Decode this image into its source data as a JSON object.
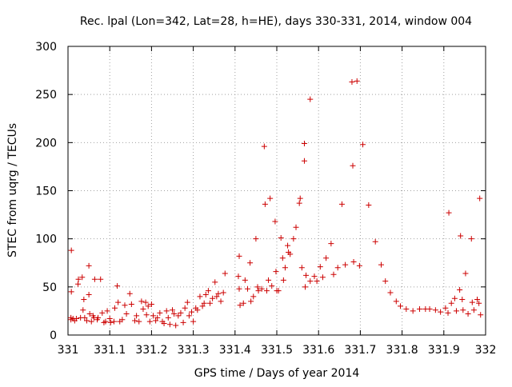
{
  "chart_data": {
    "type": "scatter",
    "title": "Rec. lpal (Lon=342, Lat=28, h=HE), days 330-331, 2014, window 004",
    "xlabel": "GPS time / Days of year 2014",
    "ylabel": "STEC from uqrg / TECUs",
    "xlim": [
      331,
      332
    ],
    "ylim": [
      0,
      300
    ],
    "xticks": [
      "331",
      "331.1",
      "331.2",
      "331.3",
      "331.4",
      "331.5",
      "331.6",
      "331.7",
      "331.8",
      "331.9",
      "332"
    ],
    "yticks": [
      "0",
      "50",
      "100",
      "150",
      "200",
      "250",
      "300"
    ],
    "grid": true,
    "legend": "none",
    "marker": "+",
    "color": "#cc0000",
    "series": [
      {
        "points": [
          [
            331.008,
            88
          ],
          [
            331.008,
            45
          ],
          [
            331.007,
            18
          ],
          [
            331.007,
            16
          ],
          [
            331.012,
            17
          ],
          [
            331.016,
            15
          ],
          [
            331.02,
            17
          ],
          [
            331.025,
            58
          ],
          [
            331.024,
            53
          ],
          [
            331.03,
            18
          ],
          [
            331.034,
            60
          ],
          [
            331.036,
            26
          ],
          [
            331.038,
            37
          ],
          [
            331.04,
            18
          ],
          [
            331.045,
            15
          ],
          [
            331.05,
            72
          ],
          [
            331.05,
            42
          ],
          [
            331.052,
            22
          ],
          [
            331.056,
            14
          ],
          [
            331.06,
            20
          ],
          [
            331.062,
            18
          ],
          [
            331.064,
            58
          ],
          [
            331.07,
            16
          ],
          [
            331.072,
            18
          ],
          [
            331.078,
            58
          ],
          [
            331.082,
            23
          ],
          [
            331.086,
            13
          ],
          [
            331.09,
            14
          ],
          [
            331.094,
            25
          ],
          [
            331.1,
            17
          ],
          [
            331.102,
            13
          ],
          [
            331.11,
            14
          ],
          [
            331.112,
            28
          ],
          [
            331.118,
            51
          ],
          [
            331.12,
            34
          ],
          [
            331.124,
            14
          ],
          [
            331.13,
            16
          ],
          [
            331.136,
            31
          ],
          [
            331.14,
            22
          ],
          [
            331.148,
            43
          ],
          [
            331.152,
            32
          ],
          [
            331.16,
            15
          ],
          [
            331.164,
            20
          ],
          [
            331.17,
            14
          ],
          [
            331.176,
            35
          ],
          [
            331.18,
            27
          ],
          [
            331.186,
            34
          ],
          [
            331.188,
            21
          ],
          [
            331.192,
            30
          ],
          [
            331.196,
            14
          ],
          [
            331.2,
            32
          ],
          [
            331.204,
            20
          ],
          [
            331.21,
            15
          ],
          [
            331.214,
            18
          ],
          [
            331.22,
            23
          ],
          [
            331.226,
            14
          ],
          [
            331.23,
            12
          ],
          [
            331.236,
            25
          ],
          [
            331.24,
            18
          ],
          [
            331.244,
            11
          ],
          [
            331.25,
            26
          ],
          [
            331.254,
            22
          ],
          [
            331.258,
            10
          ],
          [
            331.264,
            20
          ],
          [
            331.27,
            23
          ],
          [
            331.276,
            13
          ],
          [
            331.28,
            28
          ],
          [
            331.286,
            34
          ],
          [
            331.29,
            20
          ],
          [
            331.296,
            24
          ],
          [
            331.3,
            14
          ],
          [
            331.306,
            28
          ],
          [
            331.31,
            26
          ],
          [
            331.316,
            40
          ],
          [
            331.322,
            30
          ],
          [
            331.326,
            33
          ],
          [
            331.33,
            42
          ],
          [
            331.336,
            46
          ],
          [
            331.34,
            33
          ],
          [
            331.346,
            38
          ],
          [
            331.352,
            55
          ],
          [
            331.356,
            40
          ],
          [
            331.36,
            43
          ],
          [
            331.366,
            35
          ],
          [
            331.372,
            44
          ],
          [
            331.376,
            64
          ],
          [
            331.41,
            82
          ],
          [
            331.408,
            61
          ],
          [
            331.41,
            48
          ],
          [
            331.412,
            31
          ],
          [
            331.42,
            33
          ],
          [
            331.424,
            57
          ],
          [
            331.43,
            48
          ],
          [
            331.436,
            75
          ],
          [
            331.438,
            35
          ],
          [
            331.444,
            40
          ],
          [
            331.45,
            100
          ],
          [
            331.454,
            50
          ],
          [
            331.456,
            46
          ],
          [
            331.464,
            48
          ],
          [
            331.47,
            196
          ],
          [
            331.472,
            136
          ],
          [
            331.476,
            46
          ],
          [
            331.48,
            57
          ],
          [
            331.484,
            142
          ],
          [
            331.488,
            51
          ],
          [
            331.496,
            118
          ],
          [
            331.498,
            66
          ],
          [
            331.5,
            46
          ],
          [
            331.504,
            46
          ],
          [
            331.51,
            101
          ],
          [
            331.514,
            80
          ],
          [
            331.516,
            57
          ],
          [
            331.52,
            70
          ],
          [
            331.526,
            93
          ],
          [
            331.528,
            86
          ],
          [
            331.532,
            84
          ],
          [
            331.54,
            100
          ],
          [
            331.546,
            112
          ],
          [
            331.554,
            137
          ],
          [
            331.556,
            142
          ],
          [
            331.56,
            70
          ],
          [
            331.566,
            199
          ],
          [
            331.566,
            181
          ],
          [
            331.568,
            50
          ],
          [
            331.57,
            62
          ],
          [
            331.58,
            245
          ],
          [
            331.58,
            56
          ],
          [
            331.59,
            61
          ],
          [
            331.596,
            56
          ],
          [
            331.604,
            71
          ],
          [
            331.61,
            60
          ],
          [
            331.618,
            80
          ],
          [
            331.63,
            95
          ],
          [
            331.636,
            63
          ],
          [
            331.646,
            70
          ],
          [
            331.656,
            136
          ],
          [
            331.664,
            73
          ],
          [
            331.68,
            263
          ],
          [
            331.682,
            176
          ],
          [
            331.684,
            76
          ],
          [
            331.692,
            264
          ],
          [
            331.698,
            72
          ],
          [
            331.706,
            198
          ],
          [
            331.72,
            135
          ],
          [
            331.736,
            97
          ],
          [
            331.75,
            73
          ],
          [
            331.76,
            56
          ],
          [
            331.772,
            44
          ],
          [
            331.786,
            35
          ],
          [
            331.796,
            30
          ],
          [
            331.81,
            27
          ],
          [
            331.826,
            25
          ],
          [
            331.842,
            27
          ],
          [
            331.856,
            27
          ],
          [
            331.866,
            27
          ],
          [
            331.88,
            26
          ],
          [
            331.892,
            24
          ],
          [
            331.904,
            28
          ],
          [
            331.91,
            23
          ],
          [
            331.912,
            127
          ],
          [
            331.918,
            33
          ],
          [
            331.926,
            38
          ],
          [
            331.93,
            25
          ],
          [
            331.938,
            47
          ],
          [
            331.94,
            103
          ],
          [
            331.944,
            37
          ],
          [
            331.946,
            26
          ],
          [
            331.952,
            64
          ],
          [
            331.958,
            22
          ],
          [
            331.966,
            100
          ],
          [
            331.968,
            34
          ],
          [
            331.972,
            26
          ],
          [
            331.98,
            37
          ],
          [
            331.984,
            33
          ],
          [
            331.986,
            142
          ],
          [
            331.988,
            21
          ]
        ]
      }
    ]
  }
}
